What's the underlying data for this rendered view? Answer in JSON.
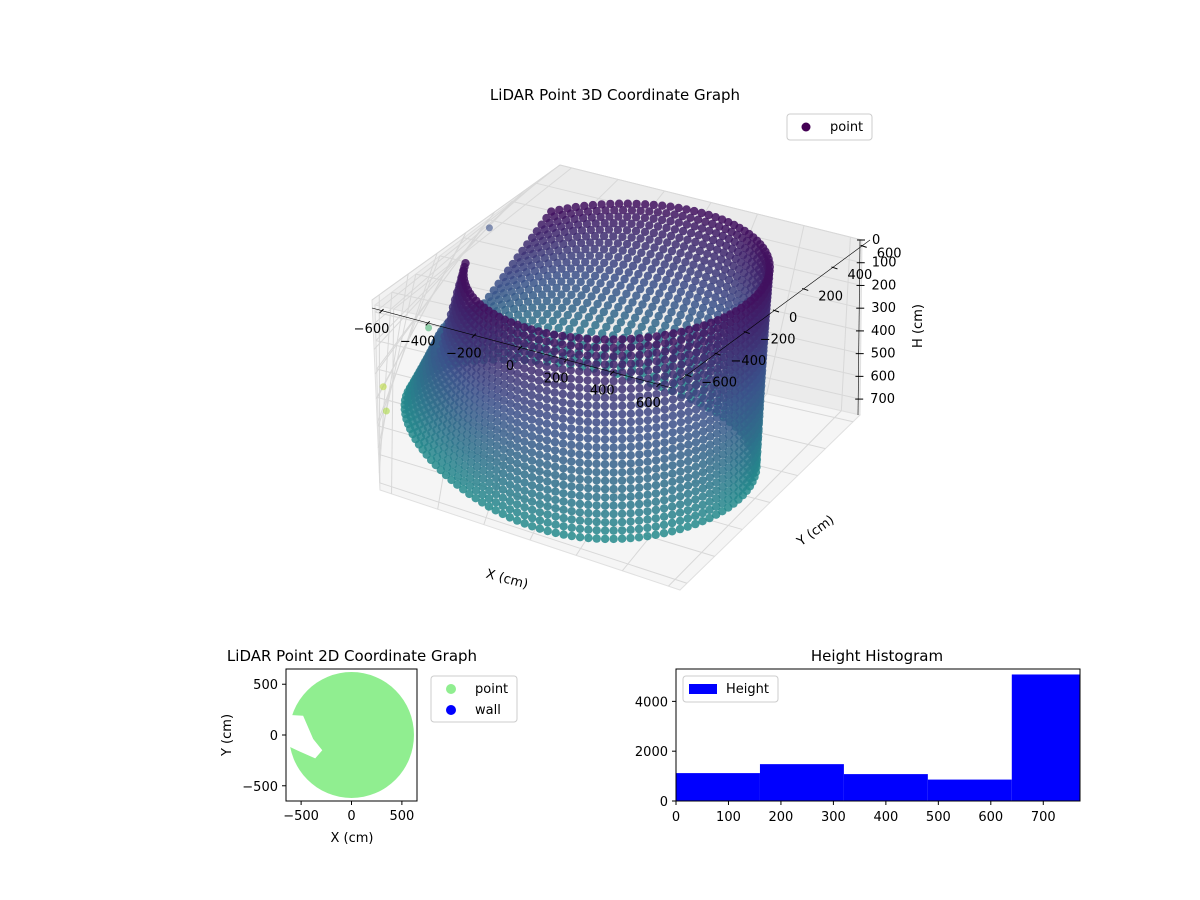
{
  "chart_data": [
    {
      "type": "scatter",
      "projection": "3d",
      "title": "LiDAR Point 3D Coordinate Graph",
      "xlabel": "X (cm)",
      "ylabel": "Y (cm)",
      "zlabel": "H (cm)",
      "xlim": [
        -650,
        650
      ],
      "ylim": [
        -650,
        650
      ],
      "zlim": [
        0,
        770
      ],
      "z_inverted": true,
      "x_ticks": [
        -600,
        -400,
        -200,
        0,
        200,
        400,
        600
      ],
      "y_ticks": [
        -600,
        -400,
        -200,
        0,
        200,
        400,
        600
      ],
      "z_ticks": [
        0,
        100,
        200,
        300,
        400,
        500,
        600,
        700
      ],
      "colormap": "viridis",
      "legend": {
        "position": "top-right",
        "entries": [
          "point"
        ]
      },
      "series": [
        {
          "name": "point",
          "shape": "cylinder-wall",
          "radius": 560,
          "center": [
            0,
            0
          ],
          "height_range": [
            0,
            770
          ],
          "opening_angle_deg": [
            150,
            200
          ],
          "outliers": [
            {
              "x": -640,
              "y": 300,
              "h": 130
            },
            {
              "x": -650,
              "y": 0,
              "h": 720
            },
            {
              "x": -640,
              "y": -200,
              "h": 700
            },
            {
              "x": -600,
              "y": 120,
              "h": 500
            }
          ]
        }
      ],
      "grid": true,
      "colors": {
        "low": "#440154",
        "mid": "#21918c",
        "high": "#fde725"
      }
    },
    {
      "type": "scatter",
      "title": "LiDAR Point 2D Coordinate Graph",
      "xlabel": "X (cm)",
      "ylabel": "Y (cm)",
      "xlim": [
        -650,
        650
      ],
      "ylim": [
        -650,
        650
      ],
      "x_ticks": [
        -500,
        0,
        500
      ],
      "y_ticks": [
        -500,
        0,
        500
      ],
      "legend": {
        "position": "outside-right",
        "entries": [
          "point",
          "wall"
        ]
      },
      "series": [
        {
          "name": "point",
          "color": "#90ee90",
          "shape": "filled-disk",
          "radius": 620
        },
        {
          "name": "wall",
          "color": "#0000ff"
        }
      ]
    },
    {
      "type": "bar",
      "subtype": "histogram",
      "title": "Height Histogram",
      "xlabel": "",
      "ylabel": "",
      "xlim": [
        0,
        770
      ],
      "ylim": [
        0,
        5300
      ],
      "x_ticks": [
        0,
        100,
        200,
        300,
        400,
        500,
        600,
        700
      ],
      "y_ticks": [
        0,
        2000,
        4000
      ],
      "bin_edges": [
        0,
        160,
        320,
        480,
        640,
        770
      ],
      "series": [
        {
          "name": "Height",
          "color": "#0000ff",
          "values": [
            1120,
            1480,
            1080,
            860,
            5080
          ]
        }
      ],
      "legend": {
        "position": "top-left",
        "entries": [
          "Height"
        ]
      }
    }
  ]
}
